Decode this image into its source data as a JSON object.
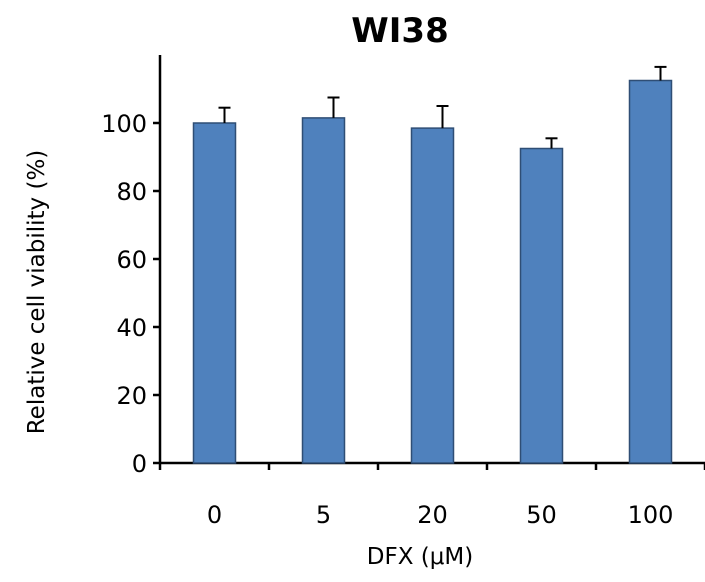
{
  "chart_data": {
    "type": "bar",
    "title": "WI38",
    "xlabel": "DFX (μM)",
    "ylabel": "Relative cell viability (%)",
    "categories": [
      "0",
      "5",
      "20",
      "50",
      "100"
    ],
    "values": [
      100,
      101.5,
      98.5,
      92.5,
      112.5
    ],
    "error": [
      4.5,
      6.0,
      6.5,
      3.0,
      4.0
    ],
    "ylim": [
      0,
      120
    ],
    "yticks": [
      0,
      20,
      40,
      60,
      80,
      100
    ],
    "grid": false,
    "bar_color": "#4F81BD",
    "bar_edge_color": "#2F4E75"
  }
}
